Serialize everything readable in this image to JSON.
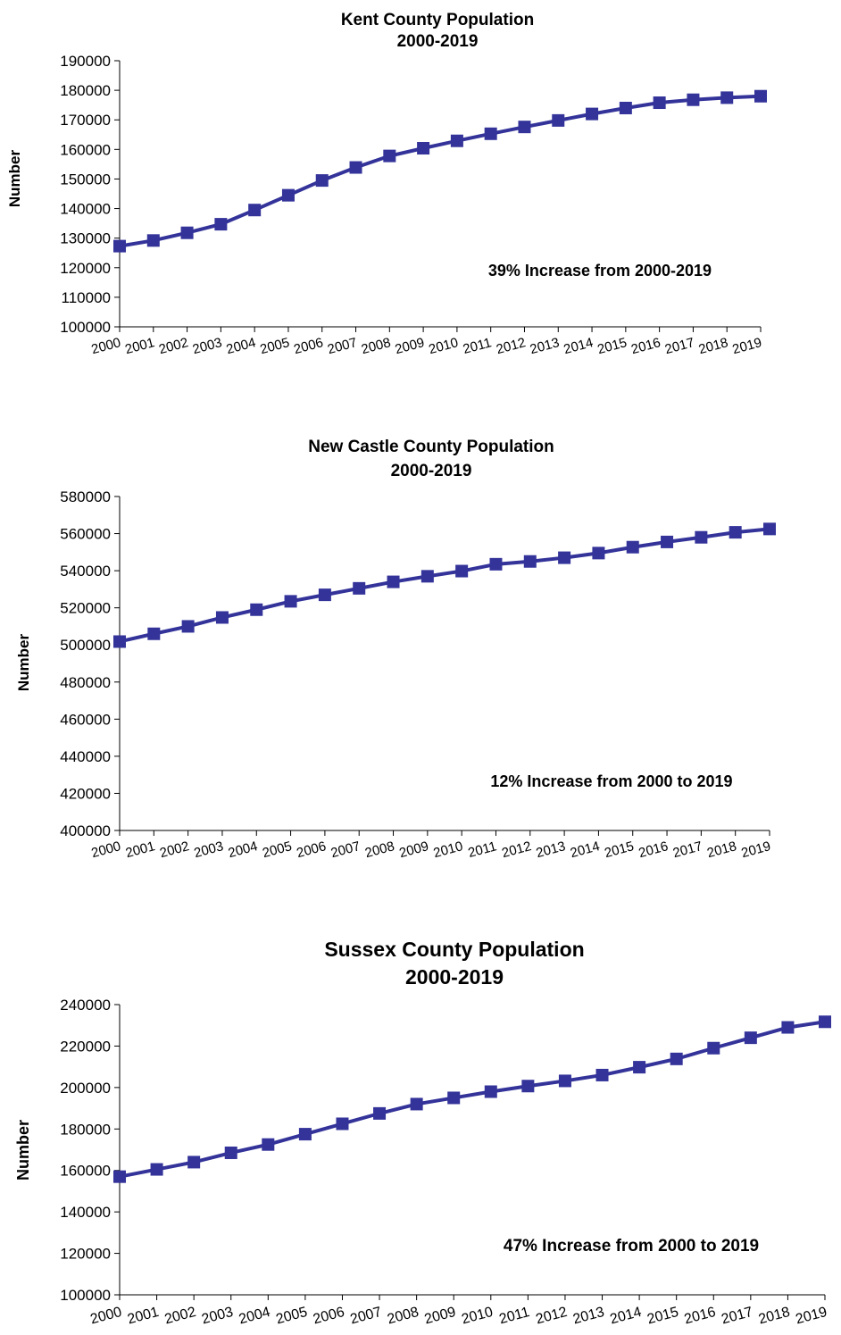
{
  "chart_data": [
    {
      "type": "line",
      "title": "Kent County Population",
      "subtitle": "2000-2019",
      "xlabel": "",
      "ylabel": "Number",
      "annotation": "39% Increase from 2000-2019",
      "categories": [
        "2000",
        "2001",
        "2002",
        "2003",
        "2004",
        "2005",
        "2006",
        "2007",
        "2008",
        "2009",
        "2010",
        "2011",
        "2012",
        "2013",
        "2014",
        "2015",
        "2016",
        "2017",
        "2018",
        "2019"
      ],
      "values": [
        127300,
        129200,
        131800,
        134700,
        139500,
        144500,
        149500,
        153900,
        157800,
        160400,
        162900,
        165300,
        167600,
        169800,
        172000,
        174000,
        175800,
        176800,
        177500,
        178000
      ],
      "ylim": [
        100000,
        190000
      ],
      "yticks": [
        100000,
        110000,
        120000,
        130000,
        140000,
        150000,
        160000,
        170000,
        180000,
        190000
      ],
      "grid": false,
      "color": "#33339a"
    },
    {
      "type": "line",
      "title": "New Castle County Population",
      "subtitle": "2000-2019",
      "xlabel": "",
      "ylabel": "Number",
      "annotation": "12% Increase from 2000 to 2019",
      "categories": [
        "2000",
        "2001",
        "2002",
        "2003",
        "2004",
        "2005",
        "2006",
        "2007",
        "2008",
        "2009",
        "2010",
        "2011",
        "2012",
        "2013",
        "2014",
        "2015",
        "2016",
        "2017",
        "2018",
        "2019"
      ],
      "values": [
        501800,
        506000,
        510000,
        514800,
        519000,
        523500,
        527000,
        530500,
        534000,
        537000,
        539800,
        543500,
        545000,
        547000,
        549500,
        552700,
        555500,
        558000,
        560700,
        562500
      ],
      "ylim": [
        400000,
        580000
      ],
      "yticks": [
        400000,
        420000,
        440000,
        460000,
        480000,
        500000,
        520000,
        540000,
        560000,
        580000
      ],
      "grid": false,
      "color": "#33339a"
    },
    {
      "type": "line",
      "title": "Sussex County Population",
      "subtitle": "2000-2019",
      "xlabel": "",
      "ylabel": "Number",
      "annotation": "47% Increase from 2000 to 2019",
      "categories": [
        "2000",
        "2001",
        "2002",
        "2003",
        "2004",
        "2005",
        "2006",
        "2007",
        "2008",
        "2009",
        "2010",
        "2011",
        "2012",
        "2013",
        "2014",
        "2015",
        "2016",
        "2017",
        "2018",
        "2019"
      ],
      "values": [
        157000,
        160500,
        164000,
        168500,
        172500,
        177500,
        182500,
        187500,
        192000,
        195000,
        198000,
        200700,
        203200,
        206000,
        209800,
        213800,
        219000,
        224000,
        229000,
        231700
      ],
      "ylim": [
        100000,
        240000
      ],
      "yticks": [
        100000,
        120000,
        140000,
        160000,
        180000,
        200000,
        220000,
        240000
      ],
      "grid": false,
      "color": "#33339a"
    }
  ]
}
